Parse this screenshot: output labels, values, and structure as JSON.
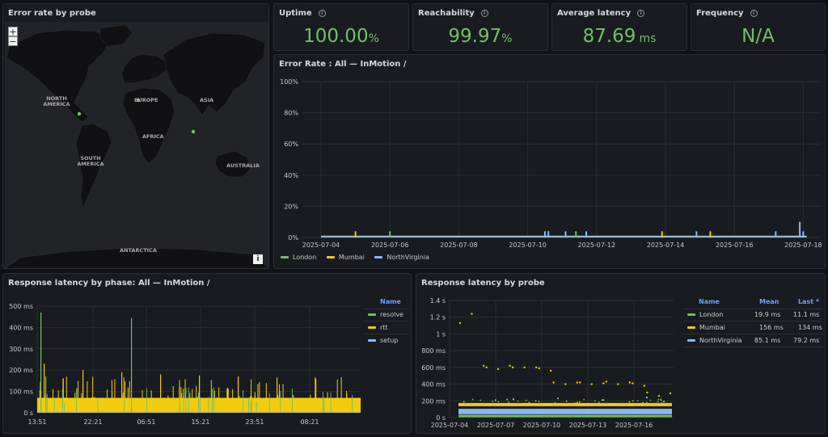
{
  "map": {
    "title": "Error rate by probe",
    "zoom_in": "+",
    "zoom_out": "−",
    "info": "i",
    "labels": {
      "north_america": "NORTH AMERICA",
      "europe": "EUROPE",
      "asia": "ASIA",
      "africa": "AFRICA",
      "south_america": "SOUTH AMERICA",
      "australia": "AUSTRALIA",
      "antarctica": "ANTARCTICA"
    },
    "probe_color": "#73bf69"
  },
  "stats": [
    {
      "title": "Uptime",
      "value": "100.00",
      "unit": "%"
    },
    {
      "title": "Reachability",
      "value": "99.97",
      "unit": "%"
    },
    {
      "title": "Average latency",
      "value": "87.69",
      "unit": "ms"
    },
    {
      "title": "Frequency",
      "value": "N/A",
      "unit": ""
    }
  ],
  "error_rate": {
    "title": "Error Rate : All — InMotion /",
    "legend": [
      "London",
      "Mumbai",
      "NorthVirginia"
    ]
  },
  "phase": {
    "title": "Response latency by phase: All — InMotion /",
    "legend_header": "Name",
    "legend": [
      "resolve",
      "rtt",
      "setup"
    ]
  },
  "probe": {
    "title": "Response latency by probe",
    "table_headers": {
      "name": "Name",
      "mean": "Mean",
      "last": "Last *"
    },
    "rows": [
      {
        "name": "London",
        "mean": "19.9 ms",
        "last": "11.1 ms"
      },
      {
        "name": "Mumbai",
        "mean": "156 ms",
        "last": "134 ms"
      },
      {
        "name": "NorthVirginia",
        "mean": "85.1 ms",
        "last": "79.2 ms"
      }
    ]
  },
  "colors": {
    "london": "#73bf69",
    "mumbai": "#f2cc0c",
    "virginia": "#8ab8ff",
    "stat": "#73bf69"
  },
  "chart_data": [
    {
      "type": "line",
      "title": "Error Rate : All — InMotion /",
      "x": [
        "2025-07-04",
        "2025-07-06",
        "2025-07-08",
        "2025-07-10",
        "2025-07-12",
        "2025-07-14",
        "2025-07-16",
        "2025-07-18"
      ],
      "ylim": [
        0,
        100
      ],
      "y_ticks": [
        "0%",
        "20%",
        "40%",
        "60%",
        "80%",
        "100%"
      ],
      "grid": true,
      "legend_position": "bottom",
      "series": [
        {
          "name": "London",
          "spikes": [
            {
              "x": "2025-07-06",
              "y": 4
            },
            {
              "x": "2025-07-11.4",
              "y": 4
            }
          ]
        },
        {
          "name": "Mumbai",
          "spikes": [
            {
              "x": "2025-07-05",
              "y": 4
            },
            {
              "x": "2025-07-13.9",
              "y": 4
            },
            {
              "x": "2025-07-15.3",
              "y": 4
            }
          ]
        },
        {
          "name": "NorthVirginia",
          "spikes": [
            {
              "x": "2025-07-10.5",
              "y": 4
            },
            {
              "x": "2025-07-10.6",
              "y": 4
            },
            {
              "x": "2025-07-11.1",
              "y": 4
            },
            {
              "x": "2025-07-11.7",
              "y": 4
            },
            {
              "x": "2025-07-14.9",
              "y": 4
            },
            {
              "x": "2025-07-17.2",
              "y": 4
            },
            {
              "x": "2025-07-17.9",
              "y": 10
            },
            {
              "x": "2025-07-18.0",
              "y": 4
            }
          ]
        }
      ]
    },
    {
      "type": "bar",
      "title": "Response latency by phase: All — InMotion /",
      "x_ticks": [
        "13:51",
        "22:21",
        "06:51",
        "15:21",
        "23:51",
        "08:21"
      ],
      "y_ticks": [
        "0 s",
        "100 ms",
        "200 ms",
        "300 ms",
        "400 ms",
        "500 ms"
      ],
      "ylim": [
        0,
        500
      ],
      "series": [
        {
          "name": "resolve",
          "peaks": [
            470,
            445,
            170
          ]
        },
        {
          "name": "rtt",
          "typical": 70,
          "peaks": [
            230,
            200,
            190,
            180,
            175,
            170,
            165,
            160
          ]
        },
        {
          "name": "setup",
          "typical": 5
        }
      ]
    },
    {
      "type": "scatter",
      "title": "Response latency by probe",
      "x_ticks": [
        "2025-07-04",
        "2025-07-07",
        "2025-07-10",
        "2025-07-13",
        "2025-07-16"
      ],
      "y_ticks": [
        "0 s",
        "200 ms",
        "400 ms",
        "600 ms",
        "800 ms",
        "1 s",
        "1.2 s",
        "1.4 s"
      ],
      "ylim": [
        0,
        1400
      ],
      "series": [
        {
          "name": "London",
          "mean": 19.9,
          "last": 11.1
        },
        {
          "name": "Mumbai",
          "mean": 156,
          "last": 134,
          "outliers": [
            1130,
            1240,
            620,
            600,
            580,
            620,
            600,
            600,
            600,
            590,
            560,
            420,
            400,
            420,
            420,
            400,
            410,
            430,
            400,
            420,
            410,
            380,
            300,
            260,
            290
          ]
        },
        {
          "name": "NorthVirginia",
          "mean": 85.1,
          "last": 79.2,
          "outliers": [
            220,
            230,
            210,
            240
          ]
        }
      ]
    }
  ]
}
